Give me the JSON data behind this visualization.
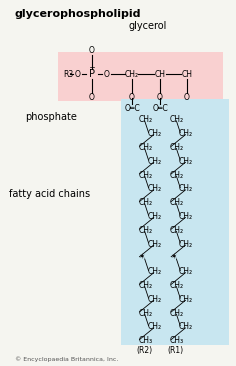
{
  "title": "glycerophospholipid",
  "bg_color": "#f5f5f0",
  "phosphate_bg": "#f9d0d0",
  "fatty_acid_bg": "#c8e6f0",
  "label_phosphate": "phosphate",
  "label_glycerol": "glycerol",
  "label_fatty": "fatty acid chains",
  "label_R1": "(R1)",
  "label_R2": "(R2)",
  "label_copyright": "© Encyclopaedia Britannica, Inc."
}
